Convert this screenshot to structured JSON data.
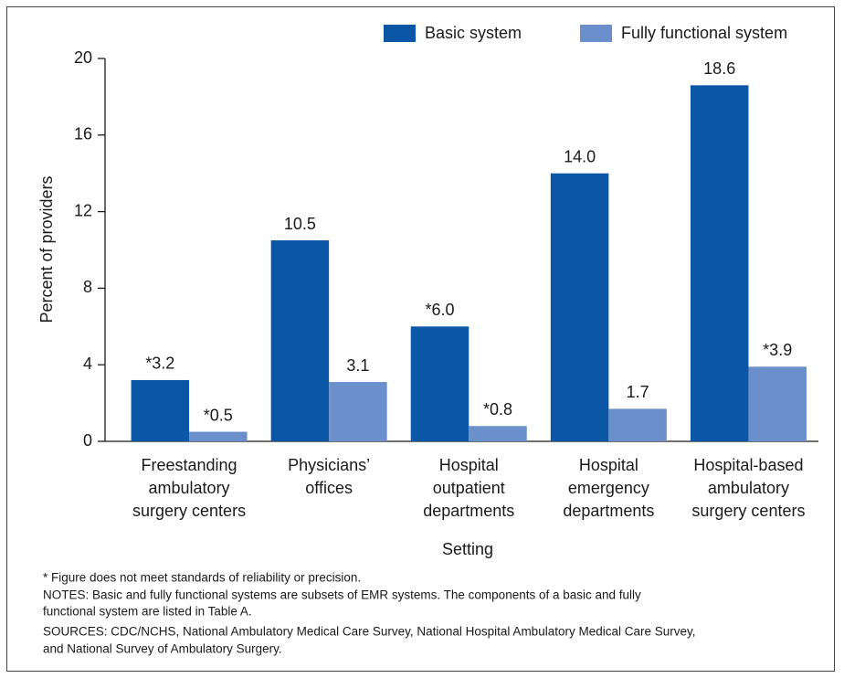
{
  "chart_data": {
    "type": "bar",
    "categories": [
      [
        "Freestanding",
        "ambulatory",
        "surgery centers"
      ],
      [
        "Physicians’",
        "offices"
      ],
      [
        "Hospital",
        "outpatient",
        "departments"
      ],
      [
        "Hospital",
        "emergency",
        "departments"
      ],
      [
        "Hospital-based",
        "ambulatory",
        "surgery centers"
      ]
    ],
    "series": [
      {
        "name": "Basic system",
        "color": "#0b57a6",
        "values": [
          3.2,
          10.5,
          6.0,
          14.0,
          18.6
        ],
        "value_labels": [
          "*3.2",
          "10.5",
          "*6.0",
          "14.0",
          "18.6"
        ]
      },
      {
        "name": "Fully functional system",
        "color": "#6b8fcb",
        "values": [
          0.5,
          3.1,
          0.8,
          1.7,
          3.9
        ],
        "value_labels": [
          "*0.5",
          "3.1",
          "*0.8",
          "1.7",
          "*3.9"
        ]
      }
    ],
    "ylabel": "Percent of providers",
    "xlabel": "Setting",
    "ylim": [
      0,
      20
    ],
    "yticks": [
      0,
      4,
      8,
      12,
      16,
      20
    ],
    "notes": [
      "* Figure does not meet standards of reliability or precision.",
      "NOTES: Basic and fully functional systems are subsets of EMR systems. The components of a basic and fully",
      "functional system are listed in Table A.",
      "SOURCES: CDC/NCHS, National Ambulatory Medical Care Survey, National Hospital Ambulatory Medical Care Survey,",
      "and National Survey of Ambulatory Surgery."
    ]
  }
}
